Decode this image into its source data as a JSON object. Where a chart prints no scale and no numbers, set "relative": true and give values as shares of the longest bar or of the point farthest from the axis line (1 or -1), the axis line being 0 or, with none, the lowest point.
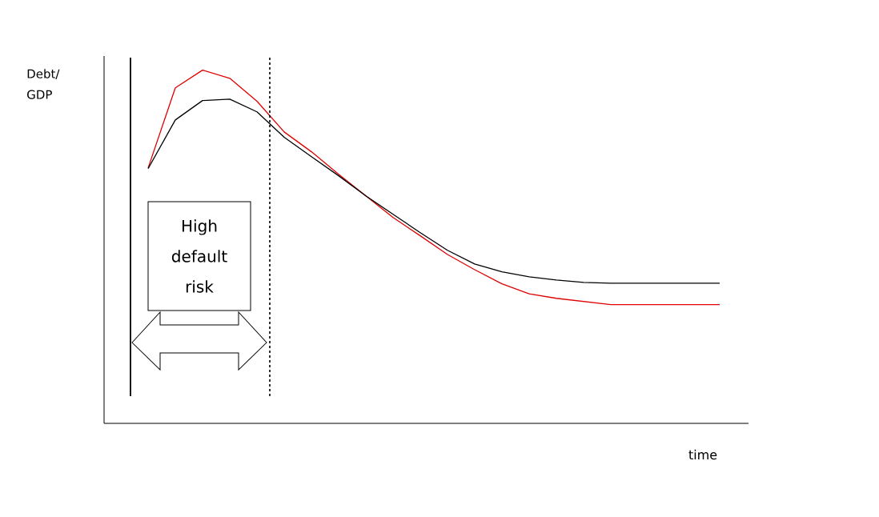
{
  "chart_data": {
    "type": "line",
    "relative": true,
    "categories": [
      null,
      null,
      null,
      null,
      null,
      null,
      null,
      null,
      null,
      null,
      null,
      null,
      null,
      null,
      null,
      null,
      null,
      null,
      null,
      null,
      null,
      null
    ],
    "series": [
      {
        "color": "#e00000",
        "values": [
          0.723,
          0.95,
          1.0,
          0.977,
          0.912,
          0.825,
          0.769,
          0.705,
          0.644,
          0.583,
          0.531,
          0.478,
          0.435,
          0.395,
          0.367,
          0.354,
          0.345,
          0.336,
          0.336,
          0.336,
          0.336,
          0.336
        ]
      },
      {
        "color": "#000000",
        "values": [
          0.721,
          0.859,
          0.914,
          0.918,
          0.882,
          0.81,
          0.755,
          0.701,
          0.644,
          0.592,
          0.54,
          0.49,
          0.451,
          0.429,
          0.415,
          0.406,
          0.399,
          0.397,
          0.397,
          0.397,
          0.397,
          0.397
        ]
      }
    ],
    "annotations": [
      "Debt/ GDP",
      "High default risk",
      "time"
    ]
  }
}
